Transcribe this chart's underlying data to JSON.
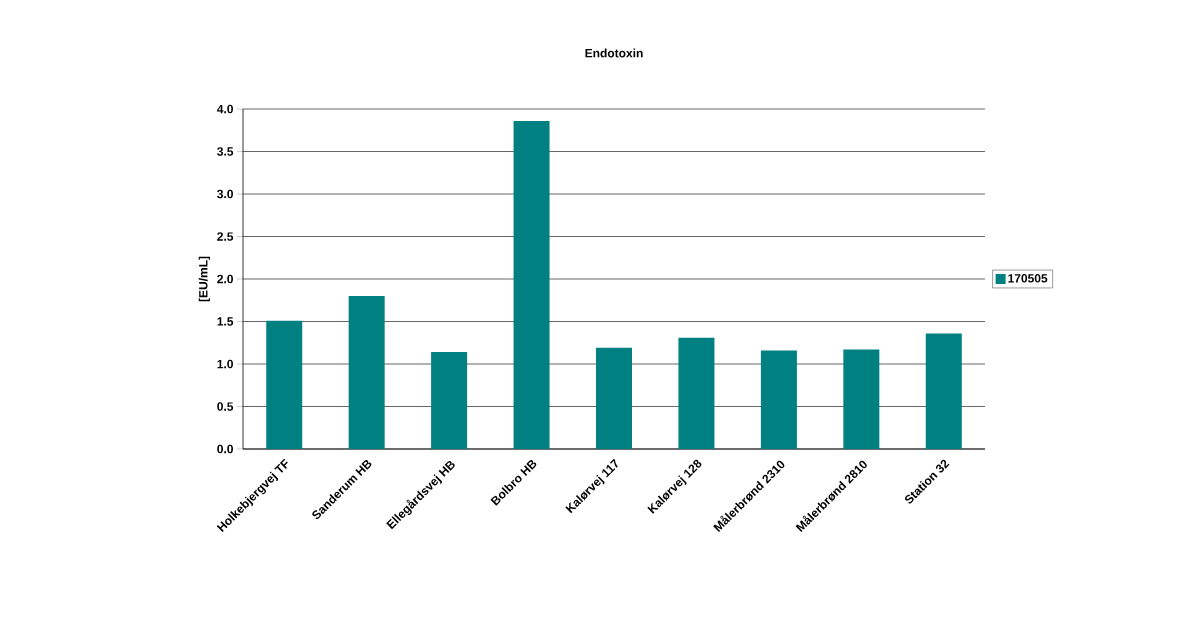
{
  "chart_data": {
    "type": "bar",
    "title": "Endotoxin",
    "ylabel": "[EU/mL]",
    "categories": [
      "Holkebjergvej TF",
      "Sanderum HB",
      "Ellegårdsvej HB",
      "Bolbro HB",
      "Kalørvej 117",
      "Kalørvej 128",
      "Målerbrønd 2310",
      "Målerbrønd 2810",
      "Station 32"
    ],
    "series": [
      {
        "name": "170505",
        "color": "#008080",
        "values": [
          1.51,
          1.8,
          1.14,
          3.86,
          1.19,
          1.31,
          1.16,
          1.17,
          1.36
        ]
      }
    ],
    "ylim": [
      0,
      4
    ],
    "yticks": [
      {
        "value": 0,
        "label": "0.0"
      },
      {
        "value": 0.5,
        "label": "0.5"
      },
      {
        "value": 1,
        "label": "1.0"
      },
      {
        "value": 1.5,
        "label": "1.5"
      },
      {
        "value": 2,
        "label": "2.0"
      },
      {
        "value": 2.5,
        "label": "2.5"
      },
      {
        "value": 3,
        "label": "3.0"
      },
      {
        "value": 3.5,
        "label": "3.5"
      },
      {
        "value": 4,
        "label": "4.0"
      }
    ],
    "grid": "y",
    "legend": "right"
  }
}
